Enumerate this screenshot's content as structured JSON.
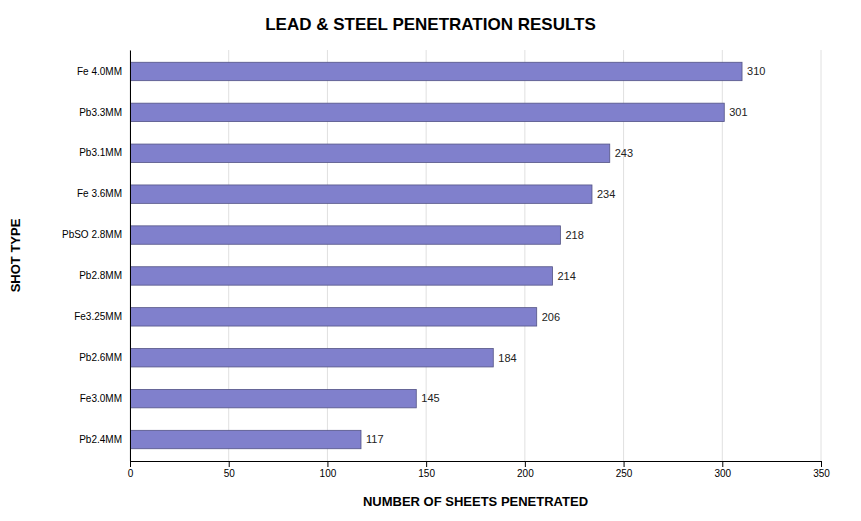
{
  "chart_data": {
    "type": "bar",
    "title": "LEAD & STEEL PENETRATION RESULTS",
    "xlabel": "NUMBER OF SHEETS PENETRATED",
    "ylabel": "SHOT TYPE",
    "categories": [
      "Fe 4.0MM",
      "Pb3.3MM",
      "Pb3.1MM",
      "Fe 3.6MM",
      "PbSO 2.8MM",
      "Pb2.8MM",
      "Fe3.25MM",
      "Pb2.6MM",
      "Fe3.0MM",
      "Pb2.4MM"
    ],
    "values": [
      310,
      301,
      243,
      234,
      218,
      214,
      206,
      184,
      145,
      117
    ],
    "color": "#8080cc",
    "orientation": "horizontal",
    "xlim": [
      0,
      350
    ],
    "xticks": [
      0,
      50,
      100,
      150,
      200,
      250,
      300,
      350
    ],
    "grid": true,
    "data_labels": true
  }
}
